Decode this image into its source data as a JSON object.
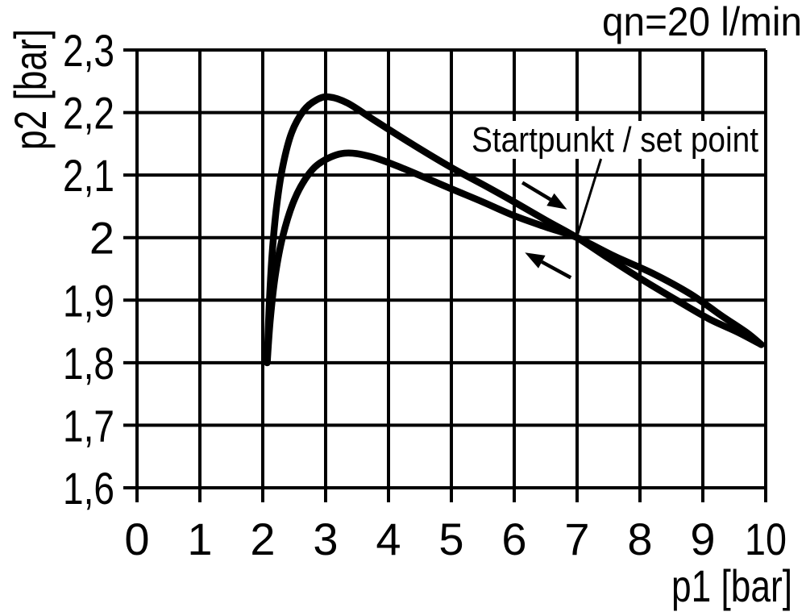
{
  "chart_data": {
    "type": "line",
    "title": "qn=20 l/min",
    "xlabel": "p1 [bar]",
    "ylabel": "p2 [bar]",
    "xlim": [
      0,
      10
    ],
    "ylim": [
      1.6,
      2.3
    ],
    "grid": true,
    "x_ticks": [
      {
        "value": 0,
        "label": "0"
      },
      {
        "value": 1,
        "label": "1"
      },
      {
        "value": 2,
        "label": "2"
      },
      {
        "value": 3,
        "label": "3"
      },
      {
        "value": 4,
        "label": "4"
      },
      {
        "value": 5,
        "label": "5"
      },
      {
        "value": 6,
        "label": "6"
      },
      {
        "value": 7,
        "label": "7"
      },
      {
        "value": 8,
        "label": "8"
      },
      {
        "value": 9,
        "label": "9"
      },
      {
        "value": 10,
        "label": "10"
      }
    ],
    "y_ticks": [
      {
        "value": 2.3,
        "label": "2,3"
      },
      {
        "value": 2.2,
        "label": "2,2"
      },
      {
        "value": 2.1,
        "label": "2,1"
      },
      {
        "value": 2.0,
        "label": "2"
      },
      {
        "value": 1.9,
        "label": "1,9"
      },
      {
        "value": 1.8,
        "label": "1,8"
      },
      {
        "value": 1.7,
        "label": "1,7"
      },
      {
        "value": 1.6,
        "label": "1,6"
      }
    ],
    "series": [
      {
        "name": "increasing-pressure-curve",
        "points": [
          [
            2.07,
            1.8
          ],
          [
            2.1,
            1.885
          ],
          [
            2.15,
            1.975
          ],
          [
            2.22,
            2.05
          ],
          [
            2.32,
            2.115
          ],
          [
            2.46,
            2.168
          ],
          [
            2.65,
            2.203
          ],
          [
            2.85,
            2.22
          ],
          [
            3.05,
            2.225
          ],
          [
            3.35,
            2.215
          ],
          [
            3.8,
            2.186
          ],
          [
            4.4,
            2.148
          ],
          [
            5.0,
            2.112
          ],
          [
            5.5,
            2.085
          ],
          [
            6.0,
            2.057
          ],
          [
            6.5,
            2.028
          ],
          [
            7.0,
            2.0
          ],
          [
            7.5,
            1.967
          ],
          [
            8.0,
            1.935
          ],
          [
            8.6,
            1.899
          ],
          [
            9.1,
            1.87
          ],
          [
            9.55,
            1.849
          ],
          [
            9.93,
            1.829
          ]
        ]
      },
      {
        "name": "decreasing-pressure-curve",
        "points": [
          [
            2.07,
            1.8
          ],
          [
            2.12,
            1.87
          ],
          [
            2.2,
            1.94
          ],
          [
            2.32,
            2.003
          ],
          [
            2.5,
            2.06
          ],
          [
            2.72,
            2.1
          ],
          [
            2.95,
            2.122
          ],
          [
            3.3,
            2.135
          ],
          [
            3.7,
            2.13
          ],
          [
            4.2,
            2.112
          ],
          [
            5.0,
            2.078
          ],
          [
            5.5,
            2.057
          ],
          [
            6.0,
            2.035
          ],
          [
            6.5,
            2.017
          ],
          [
            7.0,
            2.0
          ],
          [
            7.6,
            1.97
          ],
          [
            8.2,
            1.943
          ],
          [
            8.8,
            1.91
          ],
          [
            9.3,
            1.875
          ],
          [
            9.7,
            1.848
          ],
          [
            9.93,
            1.829
          ]
        ]
      }
    ],
    "annotations": {
      "set_point_label": "Startpunkt / set point",
      "set_point": [
        7.0,
        2.0
      ],
      "leader_line": {
        "from": [
          7.38,
          2.126
        ],
        "to": [
          7.01,
          2.006
        ]
      },
      "arrows": [
        {
          "name": "increasing-direction-arrow",
          "tail": [
            6.13,
            2.088
          ],
          "tip": [
            6.84,
            2.045
          ]
        },
        {
          "name": "decreasing-direction-arrow",
          "tail": [
            6.9,
            1.936
          ],
          "tip": [
            6.17,
            1.976
          ]
        }
      ]
    },
    "colors": {
      "line": "#000000",
      "grid": "#000000",
      "background": "#ffffff"
    }
  }
}
